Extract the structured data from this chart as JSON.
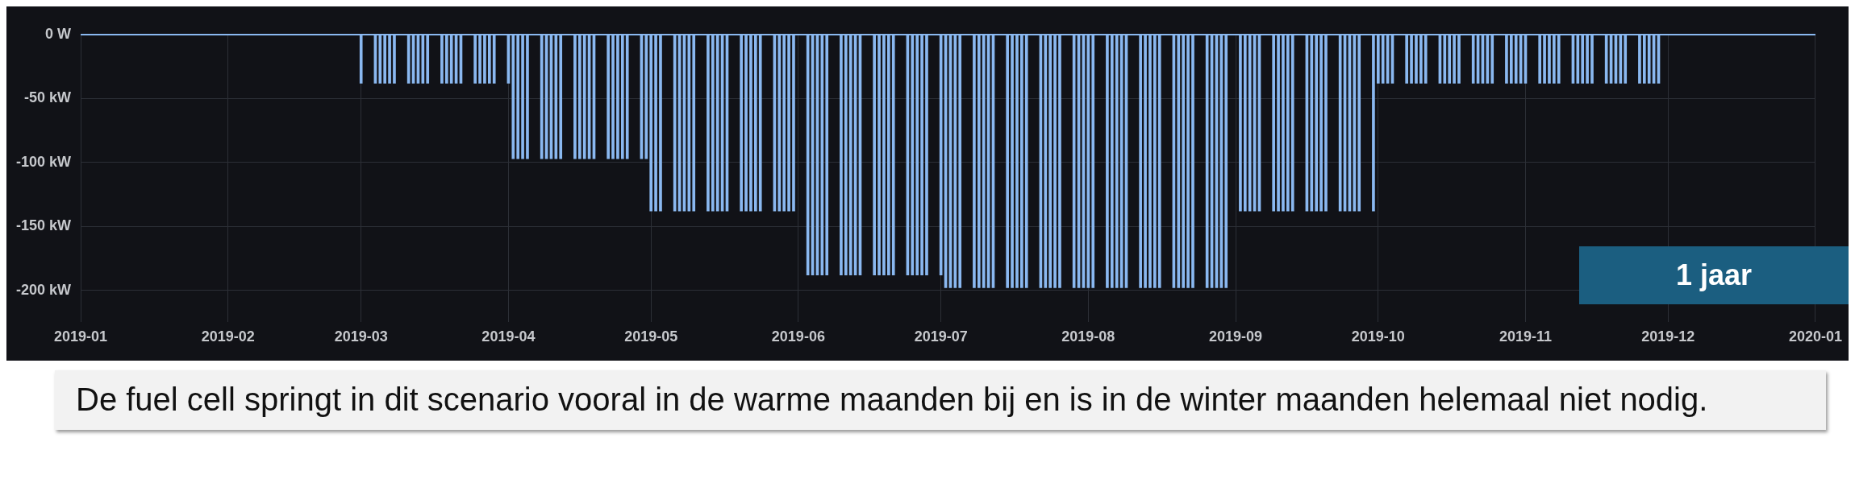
{
  "chart_data": {
    "type": "bar",
    "x": [
      "2019-03-01",
      "2019-03-04",
      "2019-03-05",
      "2019-03-06",
      "2019-03-07",
      "2019-03-08",
      "2019-03-11",
      "2019-03-12",
      "2019-03-13",
      "2019-03-14",
      "2019-03-15",
      "2019-03-18",
      "2019-03-19",
      "2019-03-20",
      "2019-03-21",
      "2019-03-22",
      "2019-03-25",
      "2019-03-26",
      "2019-03-27",
      "2019-03-28",
      "2019-03-29",
      "2019-04-01",
      "2019-04-02",
      "2019-04-03",
      "2019-04-04",
      "2019-04-05",
      "2019-04-08",
      "2019-04-09",
      "2019-04-10",
      "2019-04-11",
      "2019-04-12",
      "2019-04-15",
      "2019-04-16",
      "2019-04-17",
      "2019-04-18",
      "2019-04-19",
      "2019-04-22",
      "2019-04-23",
      "2019-04-24",
      "2019-04-25",
      "2019-04-26",
      "2019-04-29",
      "2019-04-30",
      "2019-05-01",
      "2019-05-02",
      "2019-05-03",
      "2019-05-06",
      "2019-05-07",
      "2019-05-08",
      "2019-05-09",
      "2019-05-10",
      "2019-05-13",
      "2019-05-14",
      "2019-05-15",
      "2019-05-16",
      "2019-05-17",
      "2019-05-20",
      "2019-05-21",
      "2019-05-22",
      "2019-05-23",
      "2019-05-24",
      "2019-05-27",
      "2019-05-28",
      "2019-05-29",
      "2019-05-30",
      "2019-05-31",
      "2019-06-03",
      "2019-06-04",
      "2019-06-05",
      "2019-06-06",
      "2019-06-07",
      "2019-06-10",
      "2019-06-11",
      "2019-06-12",
      "2019-06-13",
      "2019-06-14",
      "2019-06-17",
      "2019-06-18",
      "2019-06-19",
      "2019-06-20",
      "2019-06-21",
      "2019-06-24",
      "2019-06-25",
      "2019-06-26",
      "2019-06-27",
      "2019-06-28",
      "2019-07-01",
      "2019-07-02",
      "2019-07-03",
      "2019-07-04",
      "2019-07-05",
      "2019-07-08",
      "2019-07-09",
      "2019-07-10",
      "2019-07-11",
      "2019-07-12",
      "2019-07-15",
      "2019-07-16",
      "2019-07-17",
      "2019-07-18",
      "2019-07-19",
      "2019-07-22",
      "2019-07-23",
      "2019-07-24",
      "2019-07-25",
      "2019-07-26",
      "2019-07-29",
      "2019-07-30",
      "2019-07-31",
      "2019-08-01",
      "2019-08-02",
      "2019-08-05",
      "2019-08-06",
      "2019-08-07",
      "2019-08-08",
      "2019-08-09",
      "2019-08-12",
      "2019-08-13",
      "2019-08-14",
      "2019-08-15",
      "2019-08-16",
      "2019-08-19",
      "2019-08-20",
      "2019-08-21",
      "2019-08-22",
      "2019-08-23",
      "2019-08-26",
      "2019-08-27",
      "2019-08-28",
      "2019-08-29",
      "2019-08-30",
      "2019-09-02",
      "2019-09-03",
      "2019-09-04",
      "2019-09-05",
      "2019-09-06",
      "2019-09-09",
      "2019-09-10",
      "2019-09-11",
      "2019-09-12",
      "2019-09-13",
      "2019-09-16",
      "2019-09-17",
      "2019-09-18",
      "2019-09-19",
      "2019-09-20",
      "2019-09-23",
      "2019-09-24",
      "2019-09-25",
      "2019-09-26",
      "2019-09-27",
      "2019-09-30",
      "2019-10-01",
      "2019-10-02",
      "2019-10-03",
      "2019-10-04",
      "2019-10-07",
      "2019-10-08",
      "2019-10-09",
      "2019-10-10",
      "2019-10-11",
      "2019-10-14",
      "2019-10-15",
      "2019-10-16",
      "2019-10-17",
      "2019-10-18",
      "2019-10-21",
      "2019-10-22",
      "2019-10-23",
      "2019-10-24",
      "2019-10-25",
      "2019-10-28",
      "2019-10-29",
      "2019-10-30",
      "2019-10-31",
      "2019-11-01",
      "2019-11-04",
      "2019-11-05",
      "2019-11-06",
      "2019-11-07",
      "2019-11-08",
      "2019-11-11",
      "2019-11-12",
      "2019-11-13",
      "2019-11-14",
      "2019-11-15",
      "2019-11-18",
      "2019-11-19",
      "2019-11-20",
      "2019-11-21",
      "2019-11-22",
      "2019-11-25",
      "2019-11-26",
      "2019-11-27",
      "2019-11-28",
      "2019-11-29"
    ],
    "values": [
      -38,
      -38,
      -38,
      -38,
      -38,
      -38,
      -38,
      -38,
      -38,
      -38,
      -38,
      -38,
      -38,
      -38,
      -38,
      -38,
      -38,
      -38,
      -38,
      -38,
      -38,
      -38,
      -97,
      -97,
      -97,
      -97,
      -97,
      -97,
      -97,
      -97,
      -97,
      -97,
      -97,
      -97,
      -97,
      -97,
      -97,
      -97,
      -97,
      -97,
      -97,
      -97,
      -97,
      -138,
      -138,
      -138,
      -138,
      -138,
      -138,
      -138,
      -138,
      -138,
      -138,
      -138,
      -138,
      -138,
      -138,
      -138,
      -138,
      -138,
      -138,
      -138,
      -138,
      -138,
      -138,
      -138,
      -188,
      -188,
      -188,
      -188,
      -188,
      -188,
      -188,
      -188,
      -188,
      -188,
      -188,
      -188,
      -188,
      -188,
      -188,
      -188,
      -188,
      -188,
      -188,
      -188,
      -188,
      -198,
      -198,
      -198,
      -198,
      -198,
      -198,
      -198,
      -198,
      -198,
      -198,
      -198,
      -198,
      -198,
      -198,
      -198,
      -198,
      -198,
      -198,
      -198,
      -198,
      -198,
      -198,
      -198,
      -198,
      -198,
      -198,
      -198,
      -198,
      -198,
      -198,
      -198,
      -198,
      -198,
      -198,
      -198,
      -198,
      -198,
      -198,
      -198,
      -198,
      -198,
      -198,
      -198,
      -198,
      -138,
      -138,
      -138,
      -138,
      -138,
      -138,
      -138,
      -138,
      -138,
      -138,
      -138,
      -138,
      -138,
      -138,
      -138,
      -138,
      -138,
      -138,
      -138,
      -138,
      -138,
      -38,
      -38,
      -38,
      -38,
      -38,
      -38,
      -38,
      -38,
      -38,
      -38,
      -38,
      -38,
      -38,
      -38,
      -38,
      -38,
      -38,
      -38,
      -38,
      -38,
      -38,
      -38,
      -38,
      -38,
      -38,
      -38,
      -38,
      -38,
      -38,
      -38,
      -38,
      -38,
      -38,
      -38,
      -38,
      -38,
      -38,
      -38,
      -38,
      -38,
      -38,
      -38,
      -38,
      -38
    ],
    "color": "#8ab8f0",
    "xlim": [
      "2019-01",
      "2020-01"
    ],
    "xticks": [
      "2019-01",
      "2019-02",
      "2019-03",
      "2019-04",
      "2019-05",
      "2019-06",
      "2019-07",
      "2019-08",
      "2019-09",
      "2019-10",
      "2019-11",
      "2019-12",
      "2020-01"
    ],
    "ylim": [
      -225,
      0
    ],
    "yticks": [
      {
        "value": 0,
        "label": "0 W"
      },
      {
        "value": -50,
        "label": "-50 kW"
      },
      {
        "value": -100,
        "label": "-100 kW"
      },
      {
        "value": -150,
        "label": "-150 kW"
      },
      {
        "value": -200,
        "label": "-200 kW"
      }
    ],
    "ref_lines": [
      {
        "axis": "y",
        "value": 0,
        "color": "#8ab8f0"
      }
    ],
    "grid": true,
    "annotations": [
      "1 jaar",
      "De fuel cell springt in dit scenario vooral in de warme maanden bij en is in de winter maanden helemaal niet nodig."
    ]
  }
}
